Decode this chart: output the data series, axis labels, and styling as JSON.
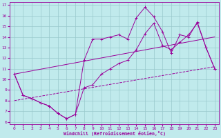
{
  "xlabel": "Windchill (Refroidissement éolien,°C)",
  "background_color": "#c0eaec",
  "grid_color": "#98c8cc",
  "line_color": "#990099",
  "xlim": [
    0,
    23
  ],
  "ylim": [
    6,
    17
  ],
  "xticks": [
    0,
    1,
    2,
    3,
    4,
    5,
    6,
    7,
    8,
    9,
    10,
    11,
    12,
    13,
    14,
    15,
    16,
    17,
    18,
    19,
    20,
    21,
    22,
    23
  ],
  "yticks": [
    6,
    7,
    8,
    9,
    10,
    11,
    12,
    13,
    14,
    15,
    16,
    17
  ],
  "line1_zigzag": {
    "x": [
      0,
      1,
      2,
      3,
      4,
      5,
      6,
      7,
      8,
      9,
      10,
      11,
      12,
      13,
      14,
      15,
      16,
      17,
      18,
      19,
      20,
      21,
      22,
      23
    ],
    "y": [
      10.5,
      8.5,
      8.2,
      7.8,
      7.5,
      6.8,
      6.3,
      6.7,
      9.2,
      9.5,
      10.5,
      11.0,
      11.5,
      11.8,
      12.8,
      14.3,
      15.3,
      13.2,
      12.8,
      13.5,
      14.2,
      15.3,
      13.0,
      11.0
    ]
  },
  "line2_upper": {
    "x": [
      0,
      1,
      2,
      3,
      4,
      5,
      6,
      7,
      8,
      9,
      10,
      11,
      12,
      13,
      14,
      15,
      16,
      17,
      18,
      19,
      20,
      21,
      22,
      23
    ],
    "y": [
      10.5,
      8.5,
      8.2,
      7.8,
      7.5,
      6.8,
      6.3,
      6.7,
      11.8,
      13.8,
      13.8,
      14.0,
      14.2,
      13.8,
      15.8,
      16.8,
      15.9,
      14.5,
      12.5,
      14.2,
      14.0,
      15.4,
      13.0,
      11.0
    ]
  },
  "line3_lower_diag": {
    "x": [
      0,
      23
    ],
    "y": [
      8.0,
      11.2
    ]
  },
  "line4_upper_diag": {
    "x": [
      0,
      23
    ],
    "y": [
      10.5,
      14.0
    ]
  }
}
